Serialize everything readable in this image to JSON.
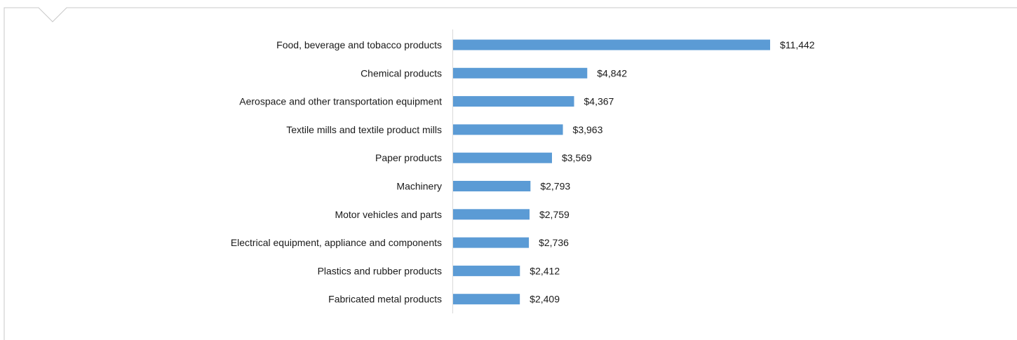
{
  "chart_data": {
    "type": "bar",
    "orientation": "horizontal",
    "categories": [
      "Food, beverage and tobacco products",
      "Chemical products",
      "Aerospace and other transportation equipment",
      "Textile mills and textile product mills",
      "Paper products",
      "Machinery",
      "Motor vehicles and parts",
      "Electrical equipment, appliance and components",
      "Plastics and rubber products",
      "Fabricated metal products"
    ],
    "values": [
      11442,
      4842,
      4367,
      3963,
      3569,
      2793,
      2759,
      2736,
      2412,
      2409
    ],
    "value_labels": [
      "$11,442",
      "$4,842",
      "$4,367",
      "$3,963",
      "$3,569",
      "$2,793",
      "$2,759",
      "$2,736",
      "$2,412",
      "$2,409"
    ],
    "xlim": [
      0,
      11442
    ],
    "grid": false,
    "bar_color": "#5b9bd5"
  }
}
